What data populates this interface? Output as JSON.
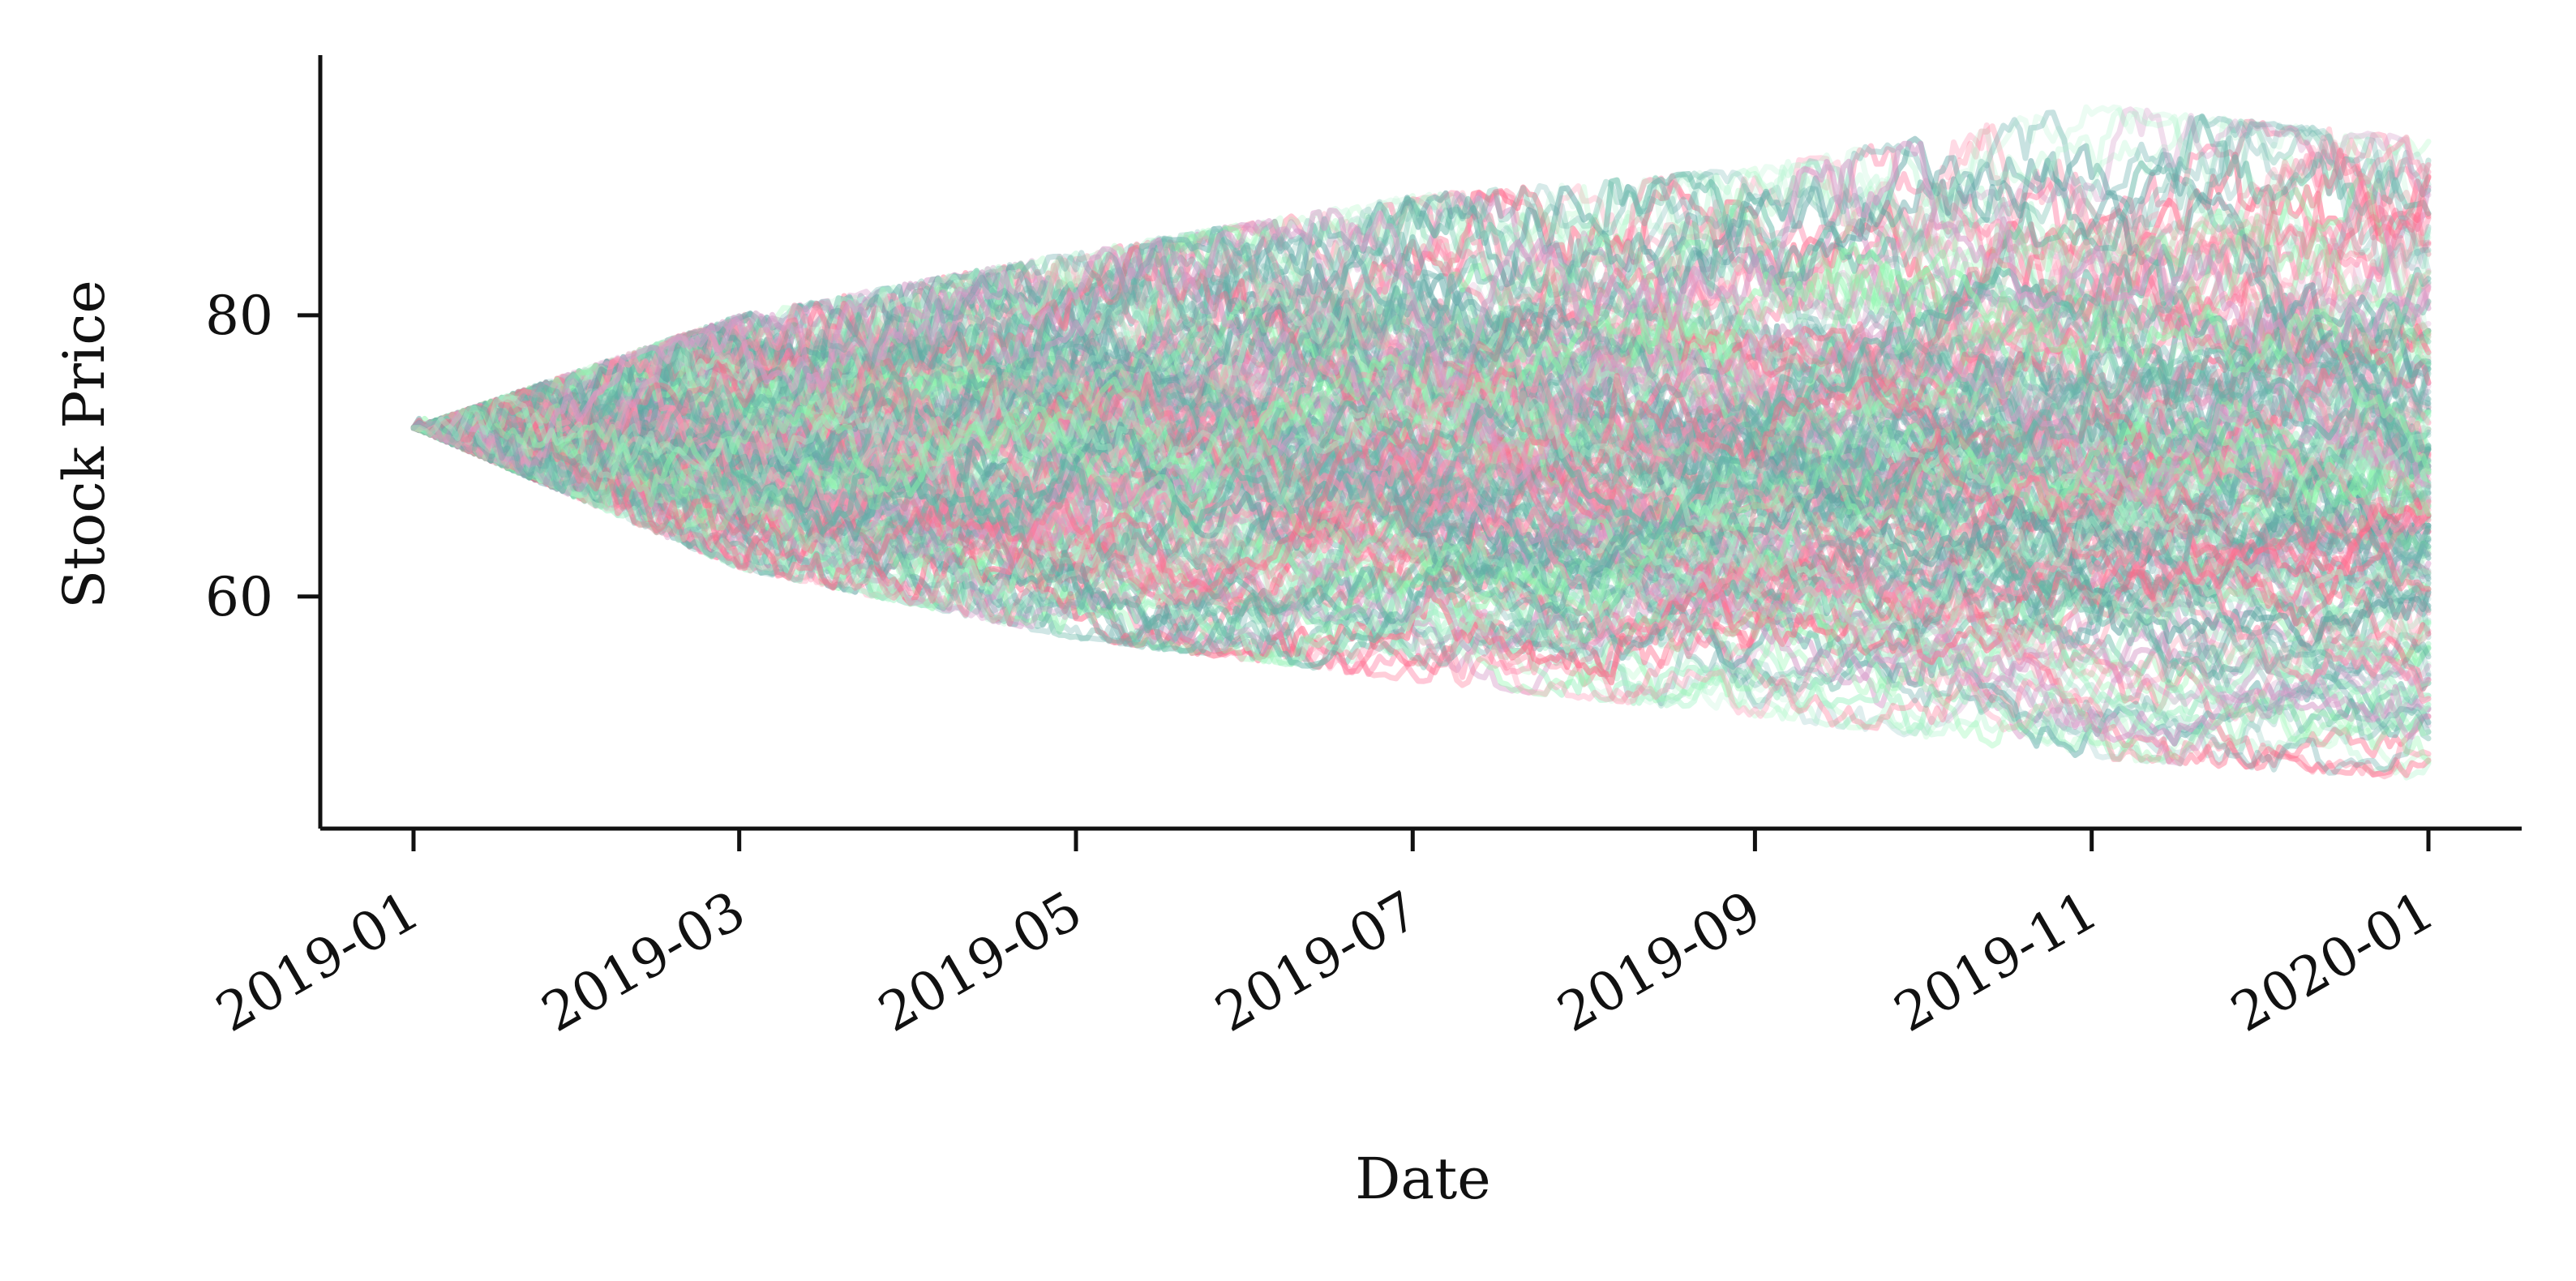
{
  "chart_data": {
    "type": "line",
    "title": "",
    "xlabel": "Date",
    "ylabel": "Stock Price",
    "x_start": "2019-01-01",
    "x_end": "2020-01-01",
    "x_ticks": [
      "2019-01",
      "2019-03",
      "2019-05",
      "2019-07",
      "2019-09",
      "2019-11",
      "2020-01"
    ],
    "y_ticks": [
      60,
      80
    ],
    "ylim": [
      43.5,
      98.5
    ],
    "grid": false,
    "legend": "none",
    "start_value": 72.0,
    "series_count": 200,
    "volatility": 0.2,
    "palette": [
      "#6fb3b0",
      "#ff6b8b",
      "#8cf7ab",
      "#d69ac8",
      "#62b6a5",
      "#ff90b0",
      "#5ea3a3",
      "#a7f3c8"
    ],
    "envelope": {
      "dates": [
        "2019-01-01",
        "2019-03-01",
        "2019-05-01",
        "2019-07-01",
        "2019-09-01",
        "2019-11-01",
        "2020-01-01"
      ],
      "max": [
        72.0,
        80.0,
        84.5,
        88.5,
        90.5,
        95.0,
        92.5
      ],
      "min": [
        72.0,
        62.0,
        57.0,
        54.0,
        51.5,
        48.5,
        47.0
      ]
    }
  }
}
